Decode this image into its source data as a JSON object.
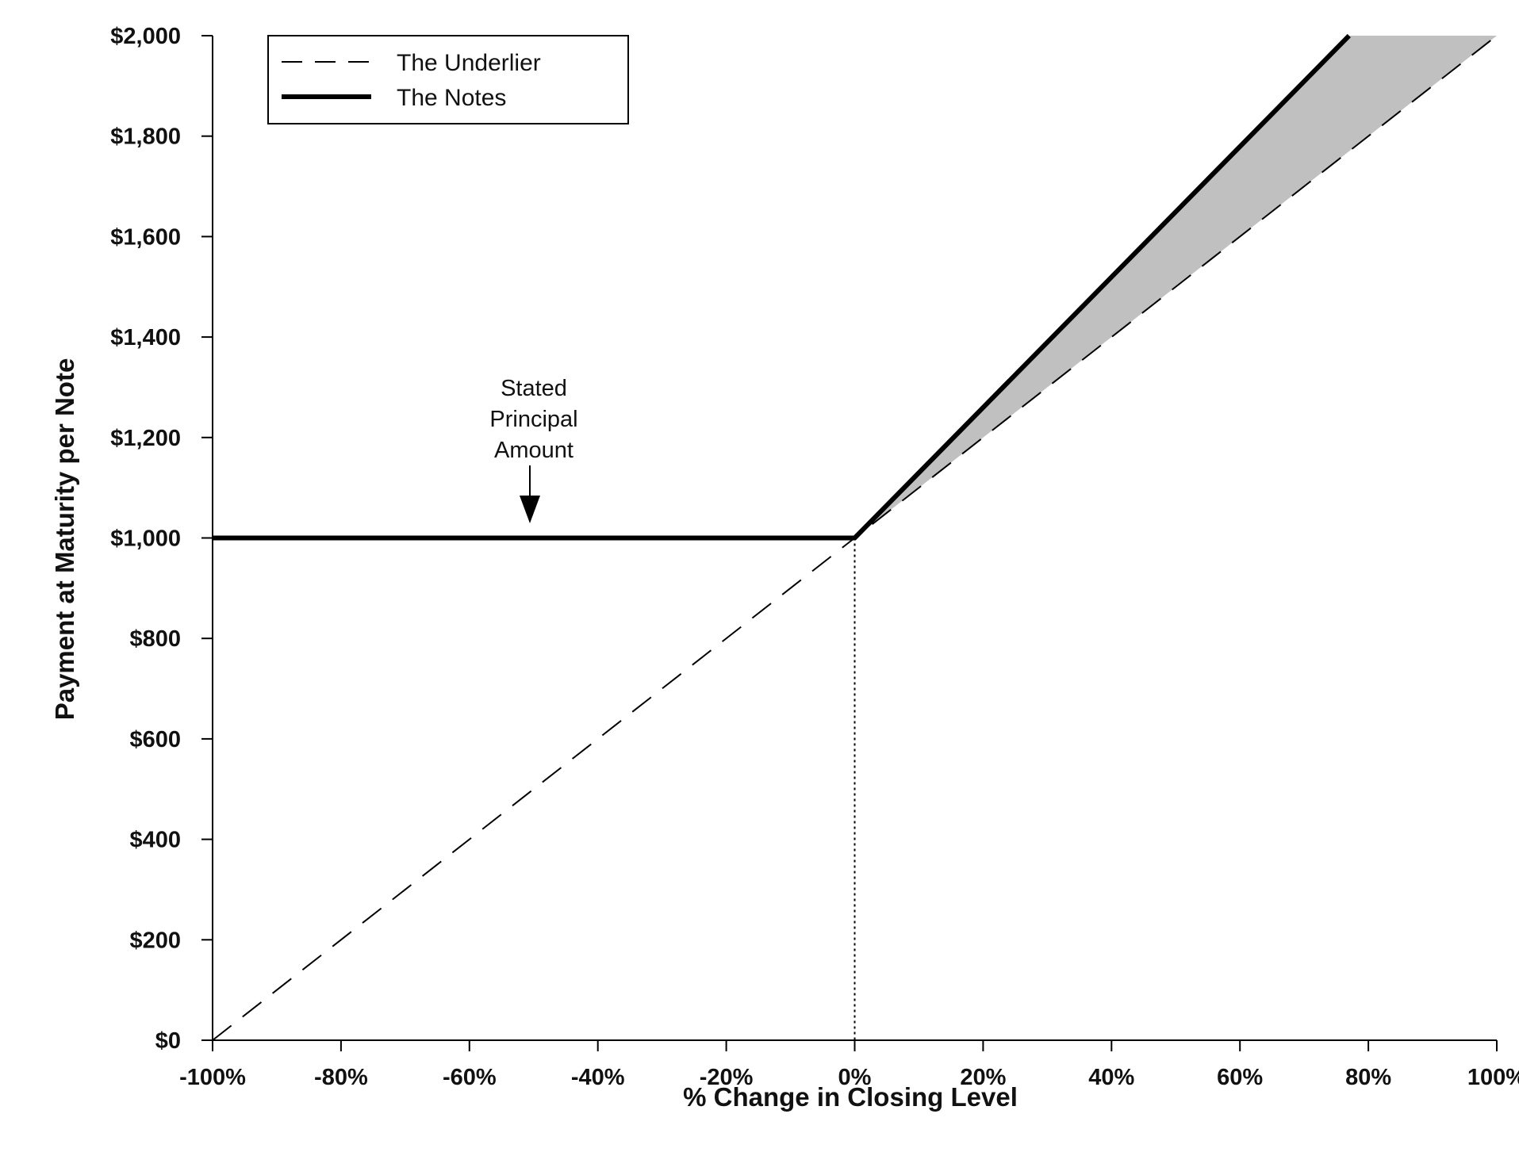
{
  "chart_data": {
    "type": "line",
    "title": "",
    "xlabel": "% Change in Closing Level",
    "ylabel": "Payment at Maturity per Note",
    "xlim": [
      -100,
      100
    ],
    "ylim": [
      0,
      2000
    ],
    "x_ticks": [
      -100,
      -80,
      -60,
      -40,
      -20,
      0,
      20,
      40,
      60,
      80,
      100
    ],
    "x_tick_labels": [
      "-100%",
      "-80%",
      "-60%",
      "-40%",
      "-20%",
      "0%",
      "20%",
      "40%",
      "60%",
      "80%",
      "100%"
    ],
    "y_ticks": [
      0,
      200,
      400,
      600,
      800,
      1000,
      1200,
      1400,
      1600,
      1800,
      2000
    ],
    "y_tick_labels": [
      "$0",
      "$200",
      "$400",
      "$600",
      "$800",
      "$1,000",
      "$1,200",
      "$1,400",
      "$1,600",
      "$1,800",
      "$2,000"
    ],
    "grid": false,
    "legend_position": "top-left",
    "series": [
      {
        "name": "The Underlier",
        "style": "dashed",
        "color": "#000000",
        "points": [
          [
            -100,
            0
          ],
          [
            0,
            1000
          ],
          [
            100,
            2000
          ]
        ]
      },
      {
        "name": "The Notes",
        "style": "solid-thick",
        "color": "#000000",
        "points": [
          [
            -100,
            1000
          ],
          [
            0,
            1000
          ],
          [
            77,
            2000
          ]
        ]
      }
    ],
    "shaded_region": {
      "color": "#c0c0c0",
      "points": [
        [
          0,
          1000
        ],
        [
          77,
          2000
        ],
        [
          100,
          2000
        ]
      ]
    },
    "reference_line": {
      "x": 0,
      "style": "dotted"
    },
    "annotation": {
      "lines": [
        "Stated",
        "Principal",
        "Amount"
      ],
      "x": -50,
      "y": 1000
    }
  }
}
